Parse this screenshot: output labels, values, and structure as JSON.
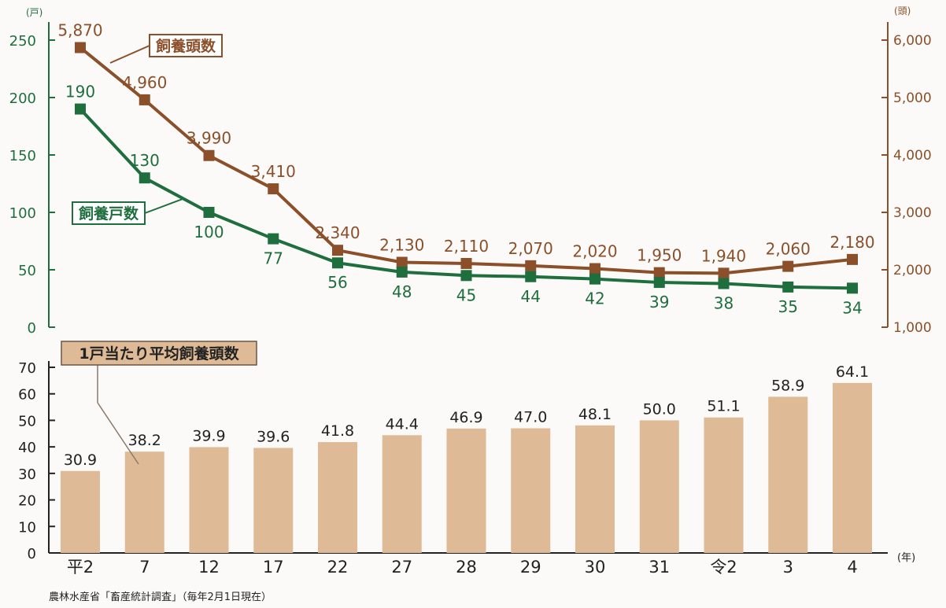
{
  "chart_data": [
    {
      "type": "line",
      "x": [
        "平2",
        "7",
        "12",
        "17",
        "22",
        "27",
        "28",
        "29",
        "30",
        "31",
        "令2",
        "3",
        "4"
      ],
      "left_axis_unit": "(戸)",
      "right_axis_unit": "(頭)",
      "left_ticks": [
        0,
        50,
        100,
        150,
        200,
        250
      ],
      "right_ticks": [
        1000,
        2000,
        3000,
        4000,
        5000,
        6000
      ],
      "right_tick_labels": [
        "1,000",
        "2,000",
        "3,000",
        "4,000",
        "5,000",
        "6,000"
      ],
      "left_ylim": [
        0,
        250
      ],
      "right_ylim": [
        1000,
        6000
      ],
      "series": [
        {
          "name": "飼養頭数",
          "axis": "right",
          "color": "#8b4f2a",
          "values": [
            5870,
            4960,
            3990,
            3410,
            2340,
            2130,
            2110,
            2070,
            2020,
            1950,
            1940,
            2060,
            2180
          ],
          "labels": [
            "5,870",
            "4,960",
            "3,990",
            "3,410",
            "2,340",
            "2,130",
            "2,110",
            "2,070",
            "2,020",
            "1,950",
            "1,940",
            "2,060",
            "2,180"
          ]
        },
        {
          "name": "飼養戸数",
          "axis": "left",
          "color": "#1f6e3e",
          "values": [
            190,
            130,
            100,
            77,
            56,
            48,
            45,
            44,
            42,
            39,
            38,
            35,
            34
          ],
          "labels": [
            "190",
            "130",
            "100",
            "77",
            "56",
            "48",
            "45",
            "44",
            "42",
            "39",
            "38",
            "35",
            "34"
          ]
        }
      ]
    },
    {
      "type": "bar",
      "categories": [
        "平2",
        "7",
        "12",
        "17",
        "22",
        "27",
        "28",
        "29",
        "30",
        "31",
        "令2",
        "3",
        "4"
      ],
      "x_unit": "(年)",
      "y_ticks": [
        0,
        10,
        20,
        30,
        40,
        50,
        60,
        70
      ],
      "ylim": [
        0,
        70
      ],
      "series": [
        {
          "name": "1戸当たり平均飼養頭数",
          "color": "#deba96",
          "values": [
            30.9,
            38.2,
            39.9,
            39.6,
            41.8,
            44.4,
            46.9,
            47.0,
            48.1,
            50.0,
            51.1,
            58.9,
            64.1
          ],
          "labels": [
            "30.9",
            "38.2",
            "39.9",
            "39.6",
            "41.8",
            "44.4",
            "46.9",
            "47.0",
            "48.1",
            "50.0",
            "51.1",
            "58.9",
            "64.1"
          ]
        }
      ]
    }
  ],
  "source_note": "農林水産省「畜産統計調査」（毎年2月1日現在）"
}
